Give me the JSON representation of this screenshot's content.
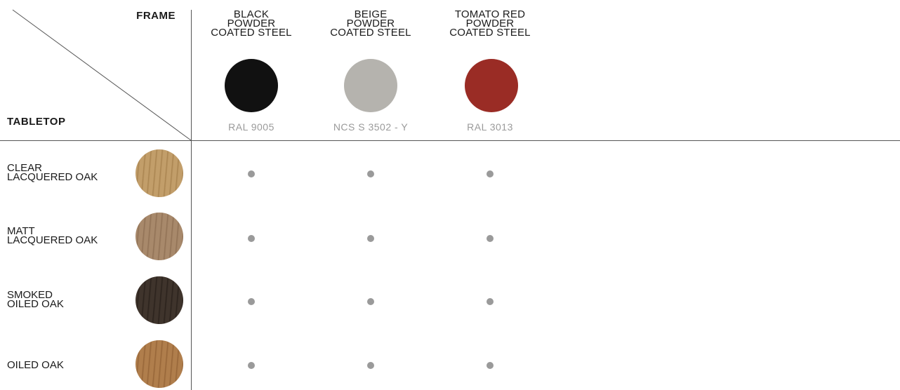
{
  "header": {
    "frame_label": "FRAME",
    "tabletop_label": "TABLETOP"
  },
  "frames": [
    {
      "name_lines": [
        "BLACK",
        "POWDER",
        "COATED STEEL"
      ],
      "code": "RAL 9005",
      "color": "#111111"
    },
    {
      "name_lines": [
        "BEIGE",
        "POWDER",
        "COATED STEEL"
      ],
      "code": "NCS S 3502 - Y",
      "color": "#b5b3ae"
    },
    {
      "name_lines": [
        "TOMATO RED",
        "POWDER",
        "COATED STEEL"
      ],
      "code": "RAL 3013",
      "color": "#9a2c25"
    }
  ],
  "tabletops": [
    {
      "name_lines": [
        "CLEAR",
        "LACQUERED OAK"
      ],
      "color": "#c29e6a",
      "grain": "#a8834f"
    },
    {
      "name_lines": [
        "MATT",
        "LACQUERED OAK"
      ],
      "color": "#a8896b",
      "grain": "#8f7054"
    },
    {
      "name_lines": [
        "SMOKED",
        "OILED OAK"
      ],
      "color": "#3f342c",
      "grain": "#2a211b"
    },
    {
      "name_lines": [
        "OILED OAK"
      ],
      "color": "#b07e4c",
      "grain": "#956437"
    }
  ],
  "availability": [
    [
      true,
      true,
      true
    ],
    [
      true,
      true,
      true
    ],
    [
      true,
      true,
      true
    ],
    [
      true,
      true,
      true
    ]
  ]
}
